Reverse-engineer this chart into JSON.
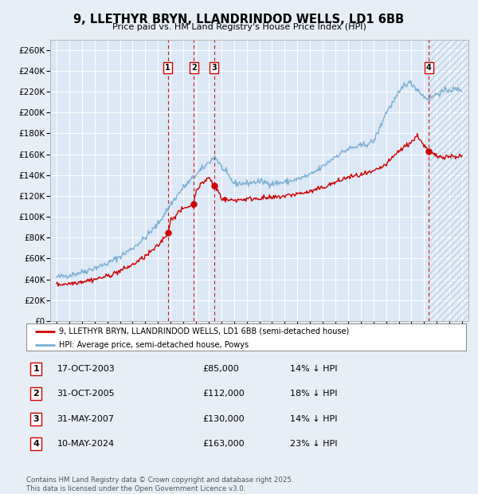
{
  "title": "9, LLETHYR BRYN, LLANDRINDOD WELLS, LD1 6BB",
  "subtitle": "Price paid vs. HM Land Registry's House Price Index (HPI)",
  "ylim": [
    0,
    270000
  ],
  "yticks": [
    0,
    20000,
    40000,
    60000,
    80000,
    100000,
    120000,
    140000,
    160000,
    180000,
    200000,
    220000,
    240000,
    260000
  ],
  "xlim_start": 1994.5,
  "xlim_end": 2027.5,
  "background_color": "#e8eef5",
  "plot_bg_color": "#dce8f5",
  "grid_color": "#ffffff",
  "hpi_line_color": "#7ab0d4",
  "price_line_color": "#cc0000",
  "sale_marker_color": "#cc0000",
  "vline_color": "#cc0000",
  "transactions": [
    {
      "date": 2003.79,
      "price": 85000,
      "label": "1"
    },
    {
      "date": 2005.83,
      "price": 112000,
      "label": "2"
    },
    {
      "date": 2007.42,
      "price": 130000,
      "label": "3"
    },
    {
      "date": 2024.36,
      "price": 163000,
      "label": "4"
    }
  ],
  "legend_entries": [
    {
      "label": "9, LLETHYR BRYN, LLANDRINDOD WELLS, LD1 6BB (semi-detached house)",
      "color": "#cc0000"
    },
    {
      "label": "HPI: Average price, semi-detached house, Powys",
      "color": "#7ab0d4"
    }
  ],
  "table_entries": [
    {
      "num": "1",
      "date": "17-OCT-2003",
      "price": "£85,000",
      "note": "14% ↓ HPI"
    },
    {
      "num": "2",
      "date": "31-OCT-2005",
      "price": "£112,000",
      "note": "18% ↓ HPI"
    },
    {
      "num": "3",
      "date": "31-MAY-2007",
      "price": "£130,000",
      "note": "14% ↓ HPI"
    },
    {
      "num": "4",
      "date": "10-MAY-2024",
      "price": "£163,000",
      "note": "23% ↓ HPI"
    }
  ],
  "footer": "Contains HM Land Registry data © Crown copyright and database right 2025.\nThis data is licensed under the Open Government Licence v3.0.",
  "hatch_start": 2024.36,
  "hatch_end": 2027.5,
  "hpi_key_years": [
    1995,
    1996,
    1997,
    1998,
    1999,
    2000,
    2001,
    2002,
    2003,
    2004,
    2005,
    2006,
    2007,
    2007.5,
    2008,
    2008.5,
    2009,
    2010,
    2011,
    2012,
    2013,
    2014,
    2015,
    2016,
    2017,
    2018,
    2019,
    2020,
    2020.5,
    2021,
    2022,
    2022.5,
    2023,
    2023.5,
    2024,
    2024.36,
    2025,
    2026,
    2027
  ],
  "hpi_key_values": [
    42000,
    44000,
    47000,
    51000,
    55000,
    62000,
    70000,
    80000,
    93000,
    112000,
    128000,
    140000,
    152000,
    158000,
    148000,
    140000,
    132000,
    132000,
    134000,
    132000,
    133000,
    136000,
    140000,
    148000,
    158000,
    165000,
    168000,
    172000,
    185000,
    200000,
    218000,
    228000,
    228000,
    222000,
    215000,
    213000,
    218000,
    222000,
    222000
  ],
  "red_key_years": [
    1995,
    1996,
    1997,
    1998,
    1999,
    2000,
    2001,
    2002,
    2003,
    2003.79,
    2004,
    2005,
    2005.83,
    2006,
    2007,
    2007.42,
    2007.8,
    2008,
    2008.5,
    2009,
    2010,
    2011,
    2012,
    2013,
    2014,
    2015,
    2016,
    2017,
    2018,
    2019,
    2020,
    2021,
    2022,
    2023,
    2023.5,
    2024,
    2024.36,
    2025,
    2026,
    2027
  ],
  "red_key_values": [
    35000,
    36000,
    38000,
    40000,
    43000,
    48000,
    54000,
    62000,
    72000,
    85000,
    97000,
    108000,
    112000,
    126000,
    138000,
    130000,
    124000,
    118000,
    116000,
    116000,
    117000,
    118000,
    118000,
    120000,
    122000,
    124000,
    128000,
    133000,
    138000,
    140000,
    143000,
    150000,
    163000,
    172000,
    178000,
    168000,
    163000,
    158000,
    158000,
    158000
  ]
}
